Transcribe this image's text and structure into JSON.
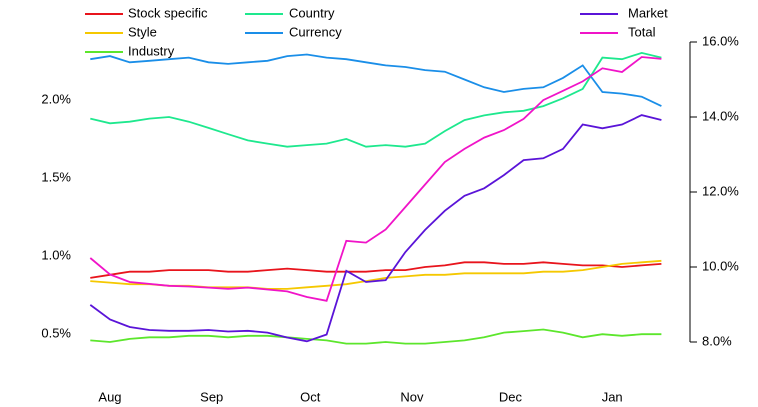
{
  "chart_data": {
    "type": "line",
    "x": [
      -6,
      0,
      6,
      12,
      18,
      24,
      30,
      36,
      42,
      48,
      54,
      60,
      66,
      72,
      78,
      84,
      90,
      96,
      102,
      108,
      114,
      120,
      126,
      132,
      138,
      144,
      150,
      156,
      162,
      168
    ],
    "xlim": [
      -7,
      170
    ],
    "xticks": [
      {
        "value": 0,
        "label": "Aug"
      },
      {
        "value": 31,
        "label": "Sep"
      },
      {
        "value": 61,
        "label": "Oct"
      },
      {
        "value": 92,
        "label": "Nov"
      },
      {
        "value": 122,
        "label": "Dec"
      },
      {
        "value": 153,
        "label": "Jan"
      }
    ],
    "ylim": [
      0.45,
      2.37
    ],
    "yticks": [
      {
        "value": 0.5,
        "label": "0.5%"
      },
      {
        "value": 1.0,
        "label": "1.0%"
      },
      {
        "value": 1.5,
        "label": "1.5%"
      },
      {
        "value": 2.0,
        "label": "2.0%"
      }
    ],
    "y2lim": [
      8,
      16
    ],
    "y2ticks": [
      {
        "value": 8,
        "label": "8.0%"
      },
      {
        "value": 10,
        "label": "10.0%"
      },
      {
        "value": 12,
        "label": "12.0%"
      },
      {
        "value": 14,
        "label": "14.0%"
      },
      {
        "value": 16,
        "label": "16.0%"
      }
    ],
    "series": [
      {
        "name": "Stock specific",
        "color": "#e8141c",
        "values": [
          0.86,
          0.88,
          0.9,
          0.9,
          0.91,
          0.91,
          0.91,
          0.9,
          0.9,
          0.91,
          0.92,
          0.91,
          0.9,
          0.9,
          0.9,
          0.91,
          0.91,
          0.93,
          0.94,
          0.96,
          0.96,
          0.95,
          0.95,
          0.96,
          0.95,
          0.94,
          0.94,
          0.93,
          0.94,
          0.95
        ]
      },
      {
        "name": "Style",
        "color": "#f5c800",
        "values": [
          0.84,
          0.83,
          0.82,
          0.82,
          0.81,
          0.81,
          0.8,
          0.8,
          0.8,
          0.79,
          0.79,
          0.8,
          0.81,
          0.82,
          0.84,
          0.86,
          0.87,
          0.88,
          0.88,
          0.89,
          0.89,
          0.89,
          0.89,
          0.9,
          0.9,
          0.91,
          0.93,
          0.95,
          0.96,
          0.97
        ]
      },
      {
        "name": "Industry",
        "color": "#5ce62c",
        "values": [
          0.46,
          0.45,
          0.47,
          0.48,
          0.48,
          0.49,
          0.49,
          0.48,
          0.49,
          0.49,
          0.48,
          0.47,
          0.46,
          0.44,
          0.44,
          0.45,
          0.44,
          0.44,
          0.45,
          0.46,
          0.48,
          0.51,
          0.52,
          0.53,
          0.51,
          0.48,
          0.5,
          0.49,
          0.5,
          0.5
        ]
      },
      {
        "name": "Country",
        "color": "#1ee88e",
        "values": [
          1.88,
          1.85,
          1.86,
          1.88,
          1.89,
          1.86,
          1.82,
          1.78,
          1.74,
          1.72,
          1.7,
          1.71,
          1.72,
          1.75,
          1.7,
          1.71,
          1.7,
          1.72,
          1.8,
          1.87,
          1.9,
          1.92,
          1.93,
          1.96,
          2.01,
          2.07,
          2.27,
          2.26,
          2.3,
          2.27
        ]
      },
      {
        "name": "Currency",
        "color": "#1a8ee8",
        "values": [
          2.26,
          2.28,
          2.24,
          2.25,
          2.26,
          2.27,
          2.24,
          2.23,
          2.24,
          2.25,
          2.28,
          2.29,
          2.27,
          2.26,
          2.24,
          2.22,
          2.21,
          2.19,
          2.18,
          2.13,
          2.08,
          2.05,
          2.07,
          2.08,
          2.14,
          2.22,
          2.05,
          2.04,
          2.02,
          1.96
        ]
      },
      {
        "name": "Market",
        "color": "#5a14d8",
        "axis": "y2",
        "values": [
          8.99,
          8.6,
          8.4,
          8.32,
          8.3,
          8.3,
          8.32,
          8.28,
          8.3,
          8.25,
          8.12,
          8.02,
          8.2,
          9.9,
          9.6,
          9.65,
          10.4,
          10.99,
          11.5,
          11.9,
          12.1,
          12.45,
          12.85,
          12.9,
          13.15,
          13.8,
          13.7,
          13.8,
          14.05,
          13.92
        ]
      },
      {
        "name": "Total",
        "color": "#f014c8",
        "axis": "y2",
        "values": [
          10.24,
          9.8,
          9.6,
          9.55,
          9.5,
          9.48,
          9.45,
          9.42,
          9.45,
          9.4,
          9.35,
          9.2,
          9.1,
          10.7,
          10.65,
          11.0,
          11.6,
          12.2,
          12.8,
          13.15,
          13.45,
          13.65,
          13.95,
          14.45,
          14.7,
          14.95,
          15.3,
          15.2,
          15.6,
          15.55
        ]
      }
    ]
  }
}
